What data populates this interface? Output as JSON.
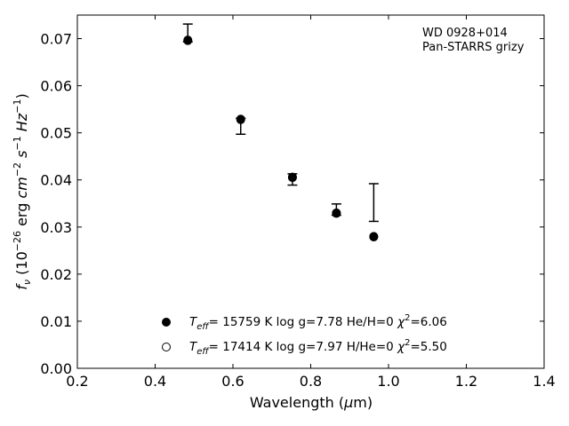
{
  "chart_data": {
    "type": "scatter",
    "title": "",
    "annotation": [
      "WD 0928+014",
      "Pan-STARRS grizy"
    ],
    "xlabel": "Wavelength (μm)",
    "ylabel": "f_ν (10^-26 erg cm^-2 s^-1 Hz^-1)",
    "xlim": [
      0.2,
      1.4
    ],
    "ylim": [
      0.0,
      0.075
    ],
    "xticks": [
      0.2,
      0.4,
      0.6,
      0.8,
      1.0,
      1.2,
      1.4
    ],
    "xtick_labels": [
      "0.2",
      "0.4",
      "0.6",
      "0.8",
      "1.0",
      "1.2",
      "1.4"
    ],
    "yticks": [
      0.0,
      0.01,
      0.02,
      0.03,
      0.04,
      0.05,
      0.06,
      0.07
    ],
    "ytick_labels": [
      "0.00",
      "0.01",
      "0.02",
      "0.03",
      "0.04",
      "0.05",
      "0.06",
      "0.07"
    ],
    "grid": false,
    "legend_position": "lower-left",
    "observed": {
      "x": [
        0.484,
        0.62,
        0.753,
        0.866,
        0.962
      ],
      "y_low": [
        0.0693,
        0.0497,
        0.0389,
        0.0325,
        0.0312
      ],
      "y_high": [
        0.0731,
        0.0531,
        0.0413,
        0.0349,
        0.0392
      ]
    },
    "series": [
      {
        "name": "Teff= 15759 K  log g=7.78  He/H=0  χ²=6.06",
        "marker": "filled",
        "x": [
          0.484,
          0.62,
          0.753,
          0.866,
          0.962
        ],
        "y": [
          0.0696,
          0.0528,
          0.0405,
          0.0329,
          0.0279
        ]
      },
      {
        "name": "Teff= 17414 K  log g=7.97  H/He=0  χ²=5.50",
        "marker": "open",
        "x": [
          0.484,
          0.62,
          0.753,
          0.866,
          0.962
        ],
        "y": [
          0.0697,
          0.0529,
          0.0406,
          0.033,
          0.028
        ]
      }
    ]
  }
}
